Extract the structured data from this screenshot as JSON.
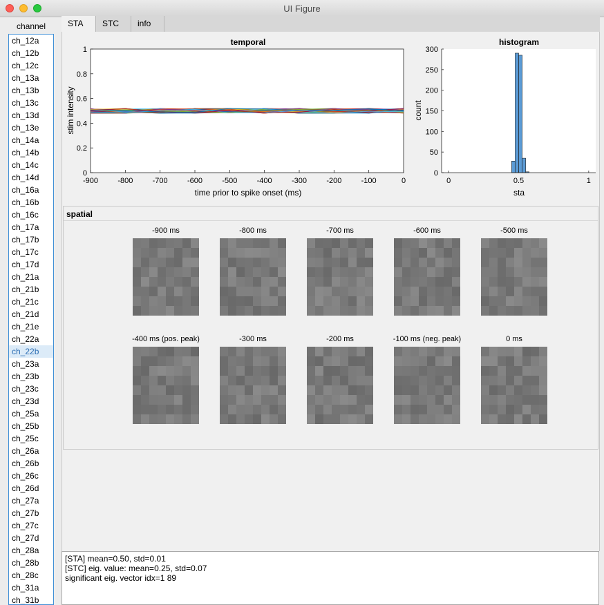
{
  "window": {
    "title": "UI Figure"
  },
  "channel": {
    "label": "channel",
    "selected_index": 25,
    "items": [
      "ch_12a",
      "ch_12b",
      "ch_12c",
      "ch_13a",
      "ch_13b",
      "ch_13c",
      "ch_13d",
      "ch_13e",
      "ch_14a",
      "ch_14b",
      "ch_14c",
      "ch_14d",
      "ch_16a",
      "ch_16b",
      "ch_16c",
      "ch_17a",
      "ch_17b",
      "ch_17c",
      "ch_17d",
      "ch_21a",
      "ch_21b",
      "ch_21c",
      "ch_21d",
      "ch_21e",
      "ch_22a",
      "ch_22b",
      "ch_23a",
      "ch_23b",
      "ch_23c",
      "ch_23d",
      "ch_25a",
      "ch_25b",
      "ch_25c",
      "ch_26a",
      "ch_26b",
      "ch_26c",
      "ch_26d",
      "ch_27a",
      "ch_27b",
      "ch_27c",
      "ch_27d",
      "ch_28a",
      "ch_28b",
      "ch_28c",
      "ch_31a",
      "ch_31b"
    ]
  },
  "tabs": [
    {
      "label": "STA",
      "active": true
    },
    {
      "label": "STC",
      "active": false
    },
    {
      "label": "info",
      "active": false
    }
  ],
  "chart_data": [
    {
      "type": "line",
      "title": "temporal",
      "xlabel": "time prior to spike onset (ms)",
      "ylabel": "stim intensity",
      "xlim": [
        -900,
        0
      ],
      "ylim": [
        0,
        1
      ],
      "xticks": [
        "-900",
        "-800",
        "-700",
        "-600",
        "-500",
        "-400",
        "-300",
        "-200",
        "-100",
        "0"
      ],
      "yticks": [
        "0",
        "0.2",
        "0.4",
        "0.6",
        "0.8",
        "1"
      ],
      "x": [
        -900,
        -800,
        -700,
        -600,
        -500,
        -400,
        -300,
        -200,
        -100,
        0
      ],
      "series_count": 64,
      "series_mean": [
        0.5,
        0.5,
        0.5,
        0.5,
        0.5,
        0.5,
        0.5,
        0.5,
        0.5,
        0.5
      ],
      "series_std": 0.01,
      "series_colors": [
        "#0072bd",
        "#d95319",
        "#edb120",
        "#7e2f8e",
        "#77ac30",
        "#4dbeee",
        "#a2142f"
      ]
    },
    {
      "type": "bar",
      "title": "histogram",
      "xlabel": "sta",
      "ylabel": "count",
      "xlim": [
        -0.05,
        1.05
      ],
      "ylim": [
        0,
        300
      ],
      "xticks": [
        "0",
        "0.5",
        "1"
      ],
      "yticks": [
        "0",
        "50",
        "100",
        "150",
        "200",
        "250",
        "300"
      ],
      "bin_width": 0.025,
      "bin_centers": [
        0.4625,
        0.4875,
        0.5125,
        0.5375,
        0.5625
      ],
      "values": [
        28,
        290,
        285,
        35,
        2
      ],
      "bar_color": "#5b9bd5"
    }
  ],
  "spatial": {
    "title": "spatial",
    "frames": [
      {
        "label": "-900 ms"
      },
      {
        "label": "-800 ms"
      },
      {
        "label": "-700 ms"
      },
      {
        "label": "-600 ms"
      },
      {
        "label": "-500 ms"
      },
      {
        "label": "-400 ms (pos. peak)"
      },
      {
        "label": "-300 ms"
      },
      {
        "label": "-200 ms"
      },
      {
        "label": "-100 ms (neg. peak)"
      },
      {
        "label": "0 ms"
      }
    ]
  },
  "output": {
    "lines": [
      "[STA] mean=0.50, std=0.01",
      "[STC] eig. value: mean=0.25, std=0.07",
      "significant eig. vector idx=1 89"
    ]
  }
}
